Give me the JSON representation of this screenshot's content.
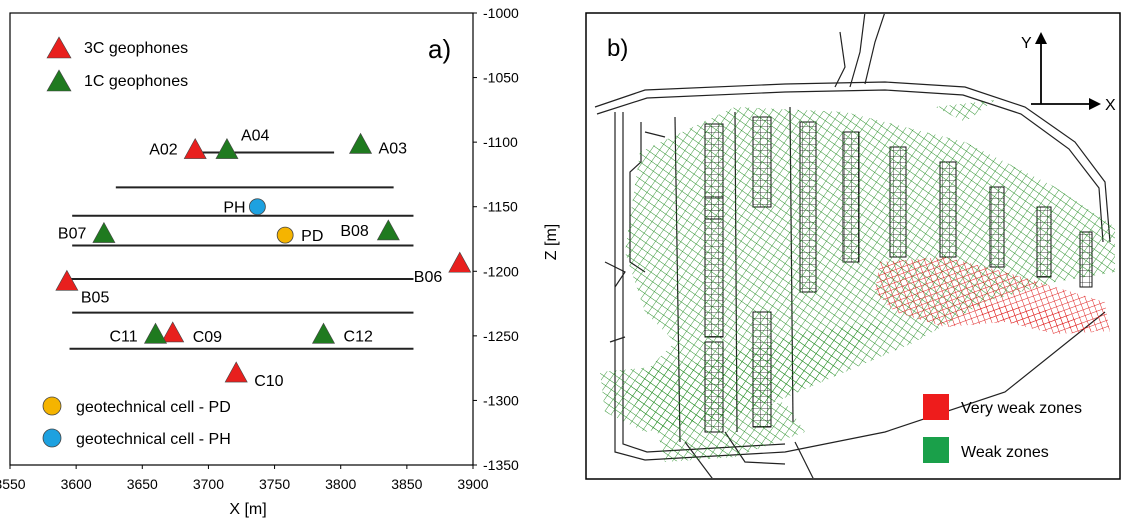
{
  "panel_a": {
    "label": "a)",
    "xlabel": "X [m]",
    "ylabel": "Z [m]",
    "x_ticks": [
      "3550",
      "3600",
      "3650",
      "3700",
      "3750",
      "3800",
      "3850",
      "3900"
    ],
    "z_ticks": [
      "-1000",
      "-1050",
      "-1100",
      "-1150",
      "-1200",
      "-1250",
      "-1300",
      "-1350"
    ],
    "legend": {
      "geophones_3c": "3C geophones",
      "geophones_1c": "1C geophones",
      "cell_pd": "geotechnical cell - PD",
      "cell_ph": "geotechnical cell - PH"
    },
    "colors": {
      "red": "#e8201e",
      "green": "#1f7a1f",
      "orange": "#f5b400",
      "blue": "#1da1e0"
    },
    "chart_data": {
      "type": "scatter",
      "xlabel": "X [m]",
      "ylabel": "Z [m]",
      "xlim": [
        3550,
        3900
      ],
      "ylim": [
        -1350,
        -1000
      ],
      "series": [
        {
          "name": "3C geophones",
          "marker": "triangle",
          "color": "#e8201e",
          "points": [
            {
              "label": "A02",
              "x": 3690,
              "z": -1105
            },
            {
              "label": "B06",
              "x": 3890,
              "z": -1193
            },
            {
              "label": "B05",
              "x": 3593,
              "z": -1207
            },
            {
              "label": "C09",
              "x": 3673,
              "z": -1247
            },
            {
              "label": "C10",
              "x": 3721,
              "z": -1278
            }
          ]
        },
        {
          "name": "1C geophones",
          "marker": "triangle",
          "color": "#1f7a1f",
          "points": [
            {
              "label": "A04",
              "x": 3714,
              "z": -1105
            },
            {
              "label": "A03",
              "x": 3815,
              "z": -1101
            },
            {
              "label": "B07",
              "x": 3621,
              "z": -1170
            },
            {
              "label": "B08",
              "x": 3836,
              "z": -1168
            },
            {
              "label": "C11",
              "x": 3660,
              "z": -1248
            },
            {
              "label": "C12",
              "x": 3787,
              "z": -1248
            }
          ]
        },
        {
          "name": "geotechnical cell - PD",
          "marker": "circle",
          "color": "#f5b400",
          "points": [
            {
              "label": "PD",
              "x": 3758,
              "z": -1172
            }
          ]
        },
        {
          "name": "geotechnical cell - PH",
          "marker": "circle",
          "color": "#1da1e0",
          "points": [
            {
              "label": "PH",
              "x": 3737,
              "z": -1150
            }
          ]
        }
      ],
      "levels": [
        {
          "x1": 3690,
          "x2": 3795,
          "z": -1108
        },
        {
          "x1": 3630,
          "x2": 3840,
          "z": -1135
        },
        {
          "x1": 3597,
          "x2": 3855,
          "z": -1157
        },
        {
          "x1": 3597,
          "x2": 3855,
          "z": -1180
        },
        {
          "x1": 3590,
          "x2": 3855,
          "z": -1206
        },
        {
          "x1": 3597,
          "x2": 3855,
          "z": -1232
        },
        {
          "x1": 3595,
          "x2": 3855,
          "z": -1260
        }
      ]
    }
  },
  "panel_b": {
    "label": "b)",
    "axis_y": "Y",
    "axis_x": "X",
    "legend": {
      "very_weak": "Very weak zones",
      "weak": "Weak zones"
    },
    "colors": {
      "very_weak": "#ee1c1c",
      "weak": "#1aa04a",
      "mesh_red": "#e02020",
      "mesh_green": "#1e8a1e"
    }
  }
}
